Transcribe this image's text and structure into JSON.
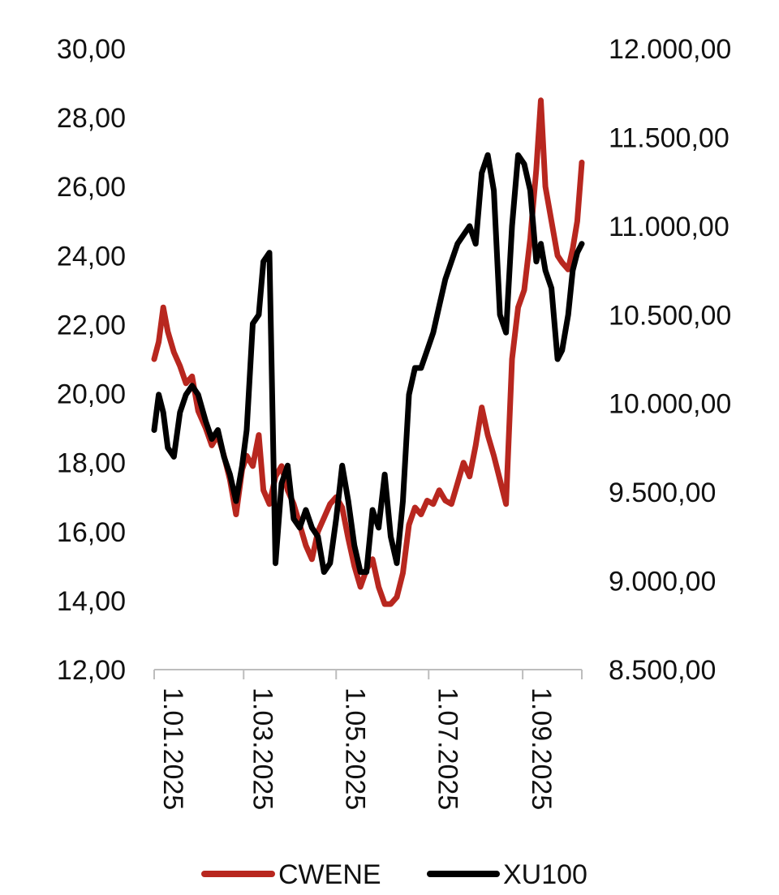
{
  "chart_data": {
    "type": "line",
    "title": "",
    "xlabel": "",
    "ylabel": "",
    "x_range": [
      "2025-01-01",
      "2025-10-10"
    ],
    "x_tick_labels": [
      "1.01.2025",
      "1.03.2025",
      "1.05.2025",
      "1.07.2025",
      "1.09.2025"
    ],
    "x_tick_dates": [
      "2025-01-01",
      "2025-03-01",
      "2025-05-01",
      "2025-07-01",
      "2025-09-01"
    ],
    "y_left": {
      "range": [
        12,
        30
      ],
      "tick_values": [
        12,
        14,
        16,
        18,
        20,
        22,
        24,
        26,
        28,
        30
      ],
      "tick_labels": [
        "12,00",
        "14,00",
        "16,00",
        "18,00",
        "20,00",
        "22,00",
        "24,00",
        "26,00",
        "28,00",
        "30,00"
      ]
    },
    "y_right": {
      "range": [
        8500,
        12000
      ],
      "tick_values": [
        8500,
        9000,
        9500,
        10000,
        10500,
        11000,
        11500,
        12000
      ],
      "tick_labels": [
        "8.500,00",
        "9.000,00",
        "9.500,00",
        "10.000,00",
        "10.500,00",
        "11.000,00",
        "11.500,00",
        "12.000,00"
      ]
    },
    "grid": false,
    "legend_position": "bottom",
    "series": [
      {
        "name": "CWENE",
        "axis": "left",
        "color": "#b8271f",
        "x": [
          "2025-01-01",
          "2025-01-04",
          "2025-01-07",
          "2025-01-10",
          "2025-01-14",
          "2025-01-18",
          "2025-01-22",
          "2025-01-26",
          "2025-01-30",
          "2025-02-04",
          "2025-02-08",
          "2025-02-12",
          "2025-02-16",
          "2025-02-20",
          "2025-02-24",
          "2025-02-28",
          "2025-03-03",
          "2025-03-07",
          "2025-03-11",
          "2025-03-14",
          "2025-03-18",
          "2025-03-22",
          "2025-03-26",
          "2025-03-30",
          "2025-04-03",
          "2025-04-07",
          "2025-04-11",
          "2025-04-15",
          "2025-04-19",
          "2025-04-23",
          "2025-04-27",
          "2025-05-01",
          "2025-05-05",
          "2025-05-09",
          "2025-05-13",
          "2025-05-17",
          "2025-05-21",
          "2025-05-25",
          "2025-05-29",
          "2025-06-02",
          "2025-06-06",
          "2025-06-10",
          "2025-06-14",
          "2025-06-18",
          "2025-06-22",
          "2025-06-26",
          "2025-06-30",
          "2025-07-04",
          "2025-07-08",
          "2025-07-12",
          "2025-07-16",
          "2025-07-20",
          "2025-07-24",
          "2025-07-28",
          "2025-08-01",
          "2025-08-05",
          "2025-08-09",
          "2025-08-13",
          "2025-08-17",
          "2025-08-21",
          "2025-08-25",
          "2025-08-29",
          "2025-09-02",
          "2025-09-06",
          "2025-09-10",
          "2025-09-13",
          "2025-09-16",
          "2025-09-20",
          "2025-09-24",
          "2025-09-27",
          "2025-10-01",
          "2025-10-04",
          "2025-10-07",
          "2025-10-10"
        ],
        "values": [
          21.0,
          21.5,
          22.5,
          21.8,
          21.2,
          20.8,
          20.3,
          20.5,
          19.5,
          19.0,
          18.5,
          18.8,
          18.2,
          17.5,
          16.5,
          17.8,
          18.2,
          17.9,
          18.8,
          17.2,
          16.8,
          17.6,
          17.9,
          17.2,
          16.8,
          16.2,
          15.6,
          15.2,
          16.0,
          16.4,
          16.8,
          17.0,
          16.7,
          15.8,
          15.0,
          14.4,
          14.9,
          15.2,
          14.4,
          13.9,
          13.9,
          14.1,
          14.8,
          16.2,
          16.7,
          16.5,
          16.9,
          16.8,
          17.2,
          16.9,
          16.8,
          17.4,
          18.0,
          17.6,
          18.5,
          19.6,
          18.8,
          18.2,
          17.5,
          16.8,
          21.0,
          22.5,
          23.0,
          24.5,
          26.5,
          28.5,
          26.0,
          25.0,
          24.0,
          23.8,
          23.6,
          24.2,
          25.0,
          26.7
        ]
      },
      {
        "name": "XU100",
        "axis": "right",
        "color": "#000000",
        "x": [
          "2025-01-01",
          "2025-01-04",
          "2025-01-07",
          "2025-01-10",
          "2025-01-14",
          "2025-01-18",
          "2025-01-22",
          "2025-01-26",
          "2025-01-30",
          "2025-02-04",
          "2025-02-08",
          "2025-02-12",
          "2025-02-16",
          "2025-02-20",
          "2025-02-24",
          "2025-02-28",
          "2025-03-03",
          "2025-03-07",
          "2025-03-11",
          "2025-03-14",
          "2025-03-18",
          "2025-03-22",
          "2025-03-26",
          "2025-03-30",
          "2025-04-03",
          "2025-04-07",
          "2025-04-11",
          "2025-04-15",
          "2025-04-19",
          "2025-04-23",
          "2025-04-27",
          "2025-05-01",
          "2025-05-05",
          "2025-05-09",
          "2025-05-13",
          "2025-05-17",
          "2025-05-21",
          "2025-05-25",
          "2025-05-29",
          "2025-06-02",
          "2025-06-06",
          "2025-06-10",
          "2025-06-14",
          "2025-06-18",
          "2025-06-22",
          "2025-06-26",
          "2025-06-30",
          "2025-07-04",
          "2025-07-08",
          "2025-07-12",
          "2025-07-16",
          "2025-07-20",
          "2025-07-24",
          "2025-07-28",
          "2025-08-01",
          "2025-08-05",
          "2025-08-09",
          "2025-08-13",
          "2025-08-17",
          "2025-08-21",
          "2025-08-25",
          "2025-08-29",
          "2025-09-02",
          "2025-09-06",
          "2025-09-10",
          "2025-09-13",
          "2025-09-16",
          "2025-09-20",
          "2025-09-24",
          "2025-09-27",
          "2025-10-01",
          "2025-10-04",
          "2025-10-07",
          "2025-10-10"
        ],
        "values": [
          9850,
          10050,
          9950,
          9750,
          9700,
          9950,
          10050,
          10100,
          10050,
          9900,
          9800,
          9850,
          9700,
          9600,
          9450,
          9650,
          9850,
          10450,
          10500,
          10800,
          10850,
          9100,
          9550,
          9650,
          9350,
          9300,
          9400,
          9300,
          9250,
          9050,
          9100,
          9350,
          9650,
          9450,
          9200,
          9050,
          9050,
          9400,
          9300,
          9600,
          9250,
          9100,
          9450,
          10050,
          10200,
          10200,
          10300,
          10400,
          10550,
          10700,
          10800,
          10900,
          10950,
          11000,
          10900,
          11300,
          11400,
          11200,
          10500,
          10400,
          11000,
          11400,
          11350,
          11200,
          10800,
          10900,
          10750,
          10650,
          10250,
          10300,
          10500,
          10750,
          10850,
          10900
        ]
      }
    ]
  }
}
